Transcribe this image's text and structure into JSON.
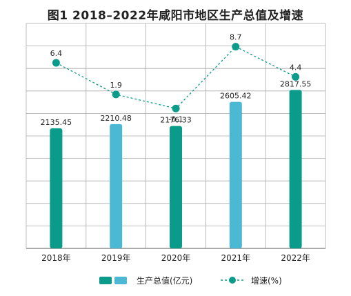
{
  "chart_data": {
    "type": "bar",
    "title": "图1  2018–2022年咸阳市地区生产总值及增速",
    "categories": [
      "2018年",
      "2019年",
      "2020年",
      "2021年",
      "2022年"
    ],
    "series": [
      {
        "name": "生产总值(亿元)",
        "kind": "bar",
        "values": [
          2135.45,
          2210.48,
          2176.33,
          2605.42,
          2817.55
        ],
        "labels": [
          "2135.45",
          "2210.48",
          "2176.33",
          "2605.42",
          "2817.55"
        ],
        "colors": [
          "#0a9b8a",
          "#4bb8d4",
          "#0a9b8a",
          "#4bb8d4",
          "#0a9b8a"
        ]
      },
      {
        "name": "增速(%)",
        "kind": "line",
        "values": [
          6.4,
          1.9,
          -0.1,
          8.7,
          4.4
        ],
        "labels": [
          "6.4",
          "1.9",
          "-0.1",
          "8.7",
          "4.4"
        ],
        "color": "#0a9b8a",
        "style": "dashed"
      }
    ],
    "bar_axis": {
      "min": 0,
      "max": 4000
    },
    "line_axis": {
      "min": -20,
      "max": 12
    },
    "grid": true,
    "legend": "bottom",
    "legend_bar_colors": [
      "#0a9b8a",
      "#4bb8d4"
    ]
  }
}
